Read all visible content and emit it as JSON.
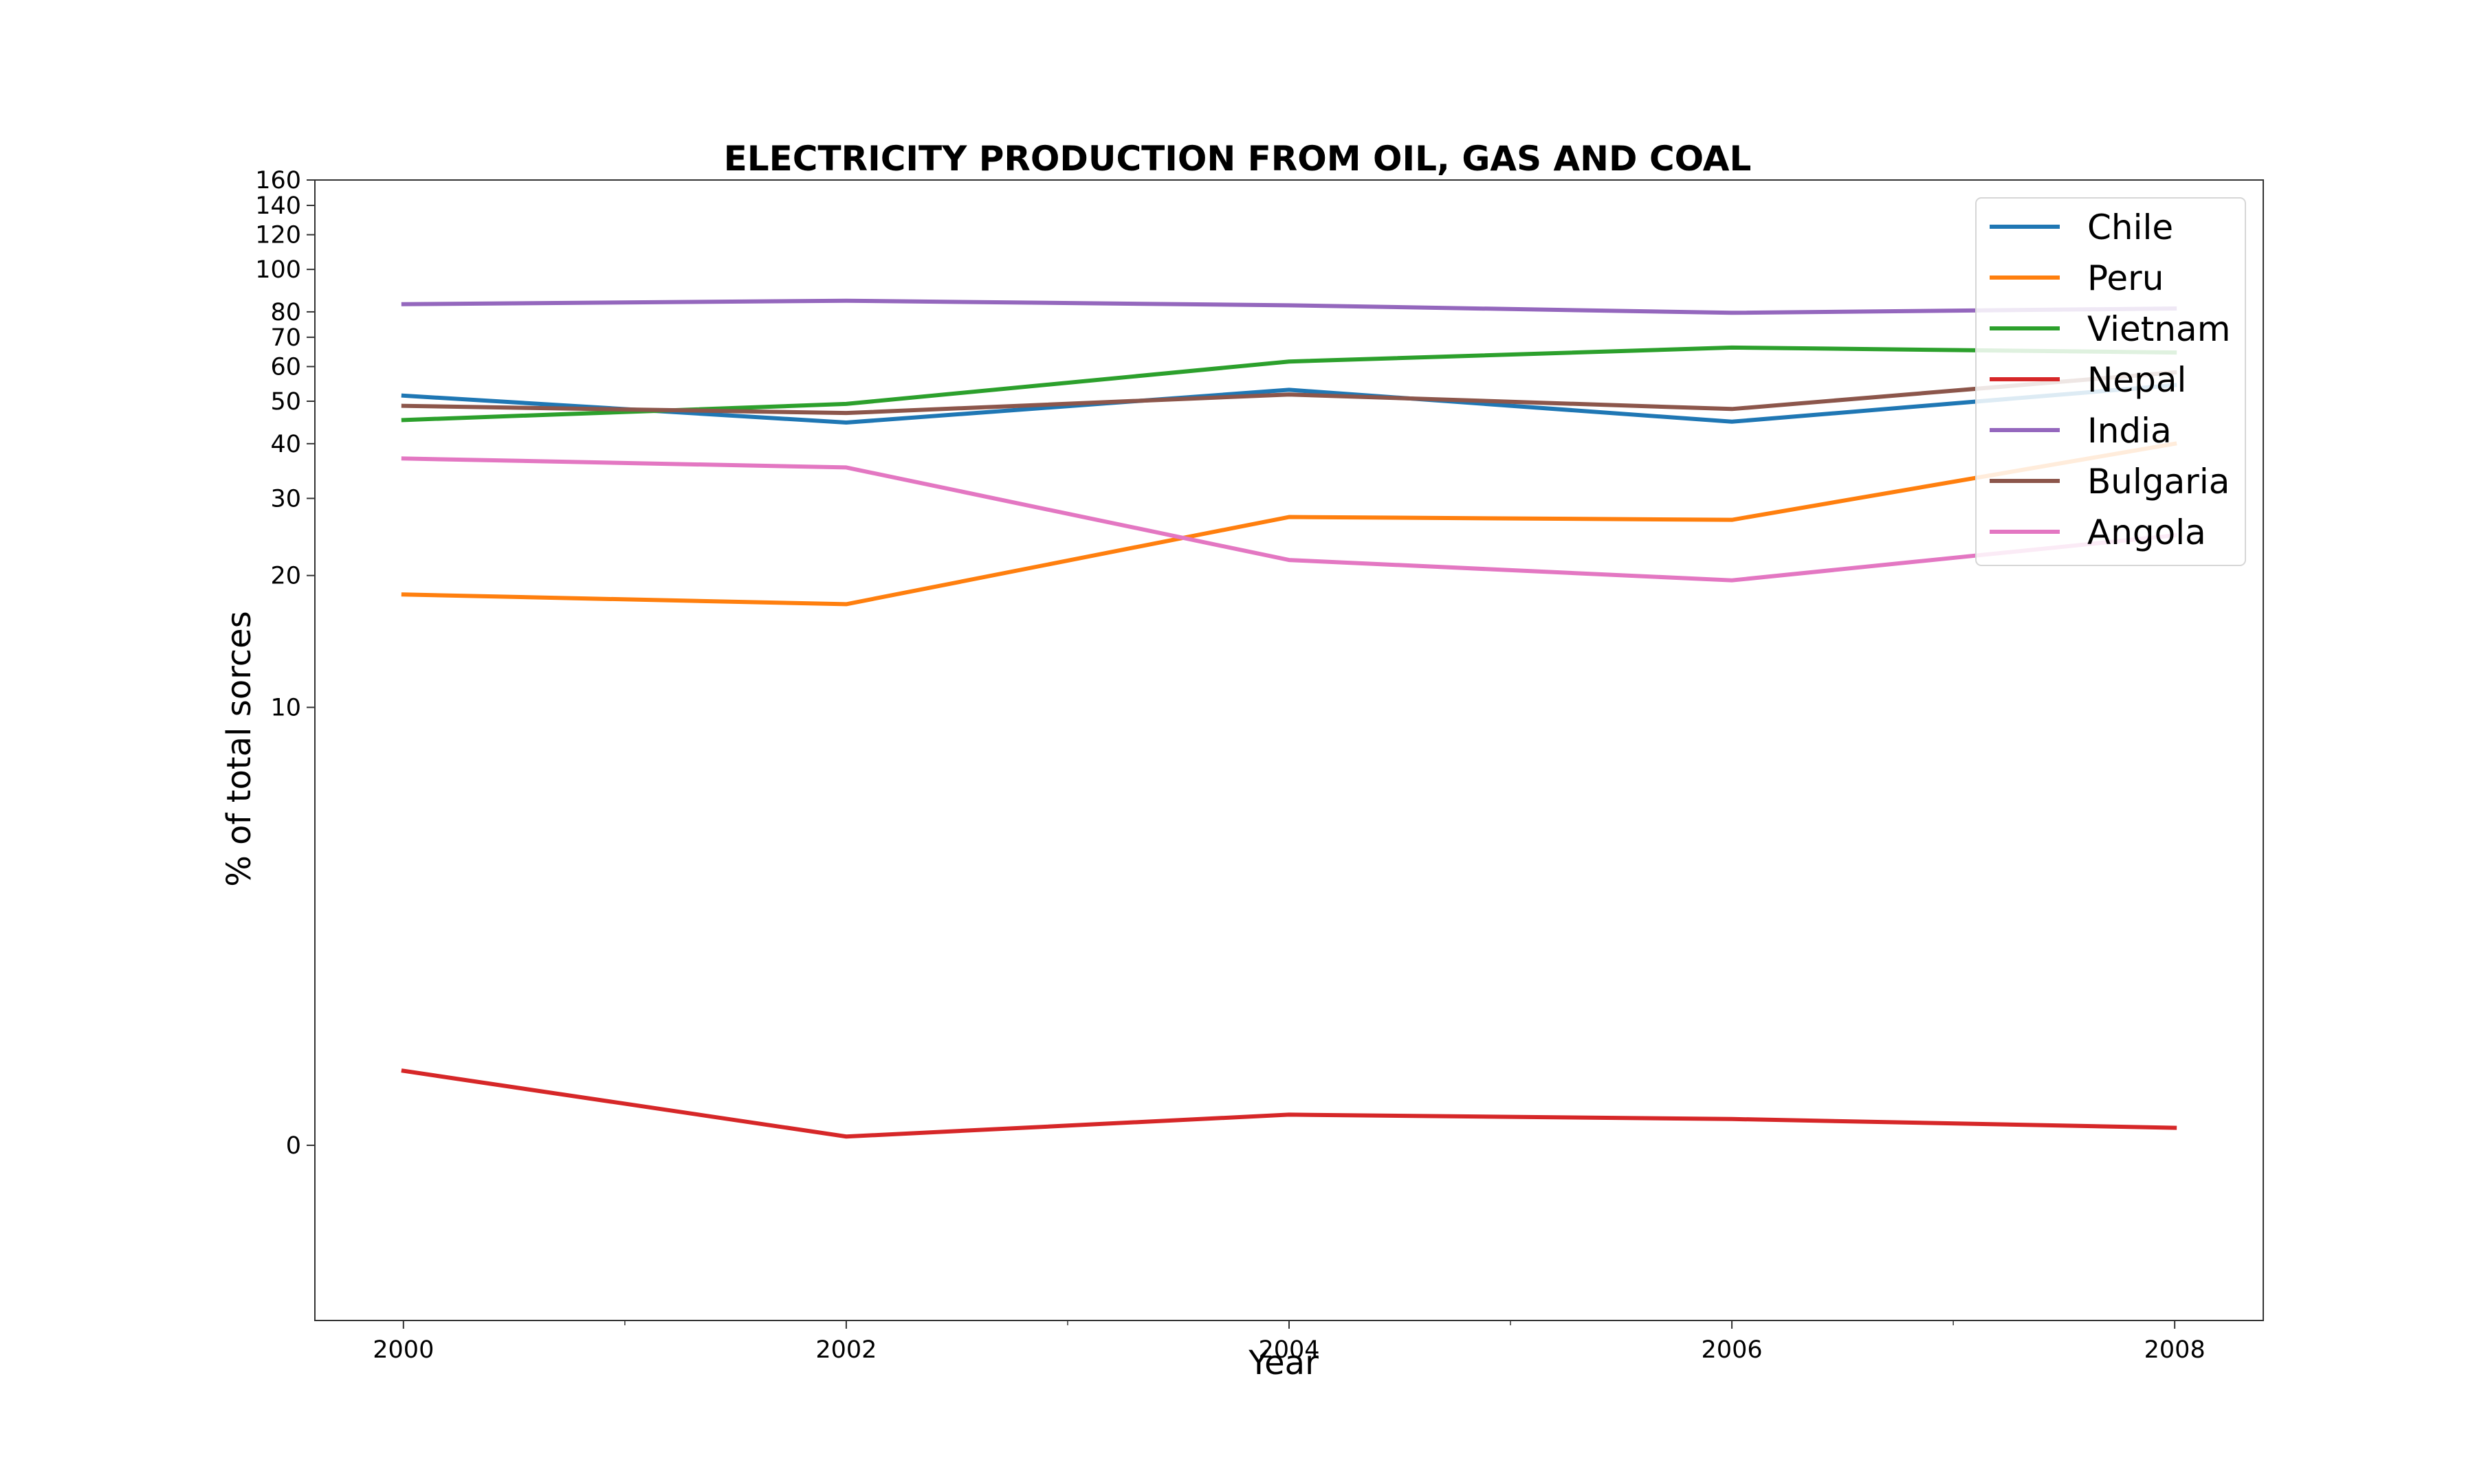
{
  "chart_data": {
    "type": "line",
    "title": "ELECTRICITY PRODUCTION FROM OIL, GAS AND COAL",
    "xlabel": "Year",
    "ylabel": "% of total sorces",
    "x": [
      2000,
      2002,
      2004,
      2006,
      2008
    ],
    "x_ticks": [
      "2000",
      "2002",
      "2004",
      "2006",
      "2008"
    ],
    "xlim": [
      1999.6,
      2008.4
    ],
    "y_scale": "symlog",
    "ylim": [
      -4,
      160
    ],
    "y_ticks": [
      "0",
      "10",
      "20",
      "30",
      "40",
      "50",
      "60",
      "70",
      "80",
      "100",
      "120",
      "140",
      "160"
    ],
    "grid": false,
    "legend_position": "top-right",
    "series": [
      {
        "name": "Chile",
        "color": "#1f77b4",
        "values": [
          51.5,
          44.7,
          53.1,
          44.9,
          54.4
        ]
      },
      {
        "name": "Peru",
        "color": "#ff7f0e",
        "values": [
          18.1,
          17.2,
          27.2,
          26.8,
          40.0
        ]
      },
      {
        "name": "Vietnam",
        "color": "#2ca02c",
        "values": [
          45.3,
          49.3,
          61.6,
          66.3,
          64.6
        ]
      },
      {
        "name": "Nepal",
        "color": "#d62728",
        "values": [
          1.7,
          0.2,
          0.7,
          0.6,
          0.4
        ]
      },
      {
        "name": "India",
        "color": "#9467bd",
        "values": [
          83.3,
          84.8,
          82.8,
          79.6,
          81.4
        ]
      },
      {
        "name": "Bulgaria",
        "color": "#8c564b",
        "values": [
          48.8,
          47.0,
          51.8,
          48.0,
          58.2
        ]
      },
      {
        "name": "Angola",
        "color": "#e377c2",
        "values": [
          37.0,
          35.3,
          21.7,
          19.5,
          24.7
        ]
      }
    ]
  }
}
